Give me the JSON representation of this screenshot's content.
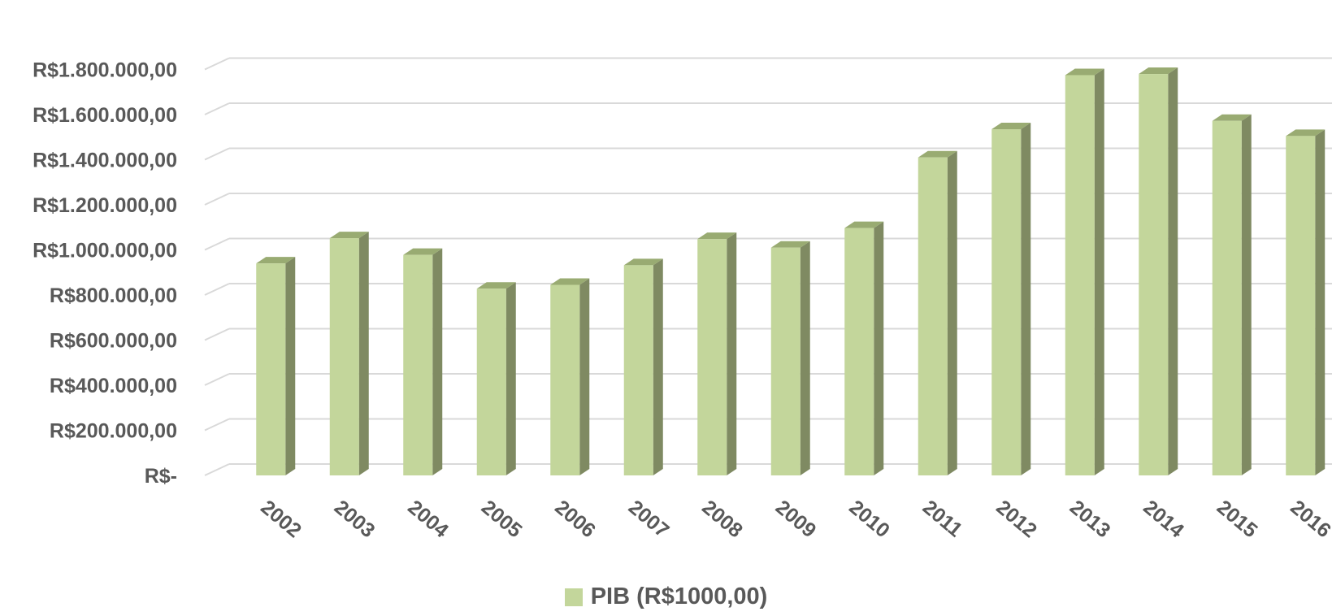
{
  "chart_data": {
    "type": "bar",
    "title": "",
    "xlabel": "",
    "ylabel": "",
    "categories": [
      "2002",
      "2003",
      "2004",
      "2005",
      "2006",
      "2007",
      "2008",
      "2009",
      "2010",
      "2011",
      "2012",
      "2013",
      "2014",
      "2015",
      "2016"
    ],
    "series": [
      {
        "name": "PIB (R$1000,00)",
        "values": [
          940000,
          1052000,
          978000,
          828000,
          845000,
          932000,
          1048000,
          1010000,
          1097000,
          1410000,
          1535000,
          1775000,
          1780000,
          1572000,
          1505000
        ],
        "color": "#C3D69B",
        "side_color": "#7F8A62",
        "top_color": "#99AB72"
      }
    ],
    "ylim": [
      0,
      1800000
    ],
    "yticks": [
      0,
      200000,
      400000,
      600000,
      800000,
      1000000,
      1200000,
      1400000,
      1600000,
      1800000
    ],
    "ytick_labels": [
      "R$-",
      "R$200.000,00",
      "R$400.000,00",
      "R$600.000,00",
      "R$800.000,00",
      "R$1.000.000,00",
      "R$1.200.000,00",
      "R$1.400.000,00",
      "R$1.600.000,00",
      "R$1.800.000,00"
    ],
    "grid": true,
    "grid_color": "#D9D9D9",
    "text_color": "#595959",
    "legend_position": "bottom",
    "three_d": true
  }
}
